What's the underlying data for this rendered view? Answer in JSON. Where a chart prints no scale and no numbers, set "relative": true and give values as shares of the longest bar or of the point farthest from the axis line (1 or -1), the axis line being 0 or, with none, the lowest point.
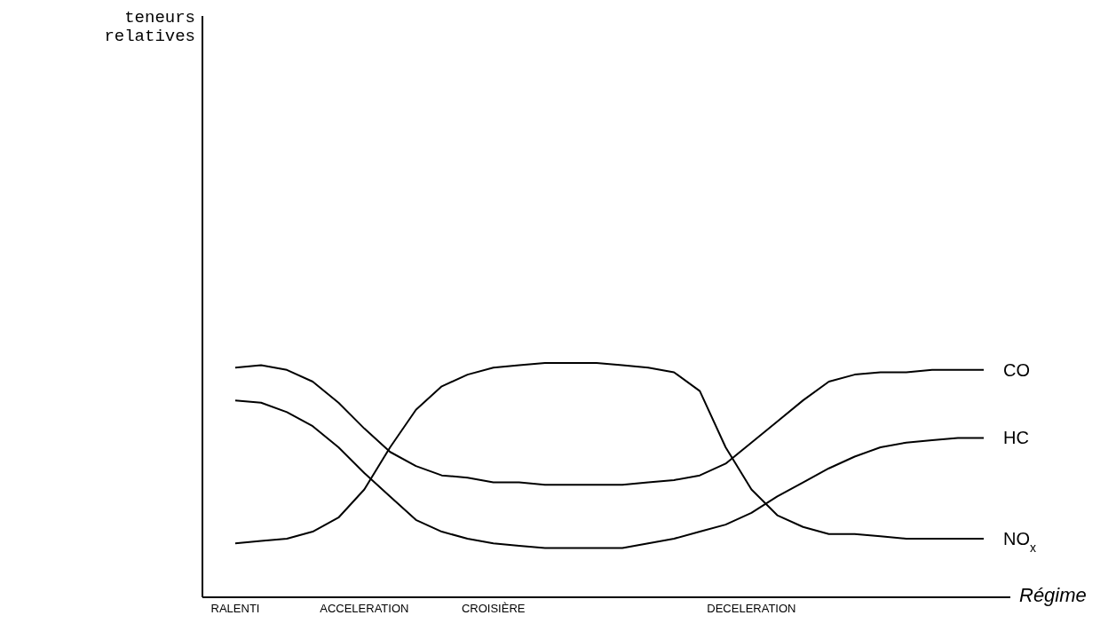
{
  "chart_data": {
    "type": "line",
    "relative": true,
    "xlabel": "Régime",
    "annotations": [
      "teneurs relatives"
    ],
    "categories": [
      "RALENTI",
      null,
      null,
      null,
      null,
      "ACCELERATION",
      null,
      null,
      null,
      null,
      "CROISIÈRE",
      null,
      null,
      null,
      null,
      null,
      null,
      null,
      null,
      null,
      "DECELERATION",
      null,
      null,
      null,
      null,
      null,
      null,
      null,
      null,
      null
    ],
    "marker": "none",
    "line_style": "solid",
    "tick_labels": "x",
    "series": [
      {
        "name": "CO",
        "color": "#000000",
        "values": [
          0.98,
          0.99,
          0.97,
          0.92,
          0.83,
          0.72,
          0.62,
          0.56,
          0.52,
          0.51,
          0.49,
          0.49,
          0.48,
          0.48,
          0.48,
          0.48,
          0.49,
          0.5,
          0.52,
          0.57,
          0.66,
          0.75,
          0.84,
          0.92,
          0.95,
          0.96,
          0.96,
          0.97,
          0.97,
          0.97
        ]
      },
      {
        "name": "HC",
        "color": "#000000",
        "values": [
          0.84,
          0.83,
          0.79,
          0.73,
          0.64,
          0.53,
          0.43,
          0.33,
          0.28,
          0.25,
          0.23,
          0.22,
          0.21,
          0.21,
          0.21,
          0.21,
          0.23,
          0.25,
          0.28,
          0.31,
          0.36,
          0.43,
          0.49,
          0.55,
          0.6,
          0.64,
          0.66,
          0.67,
          0.68,
          0.68
        ]
      },
      {
        "name": "NO$_{x}$",
        "color": "#000000",
        "values": [
          0.23,
          0.24,
          0.25,
          0.28,
          0.34,
          0.46,
          0.64,
          0.8,
          0.9,
          0.95,
          0.98,
          0.99,
          1.0,
          1.0,
          1.0,
          0.99,
          0.98,
          0.96,
          0.88,
          0.64,
          0.46,
          0.35,
          0.3,
          0.27,
          0.27,
          0.26,
          0.25,
          0.25,
          0.25,
          0.25
        ]
      }
    ]
  }
}
